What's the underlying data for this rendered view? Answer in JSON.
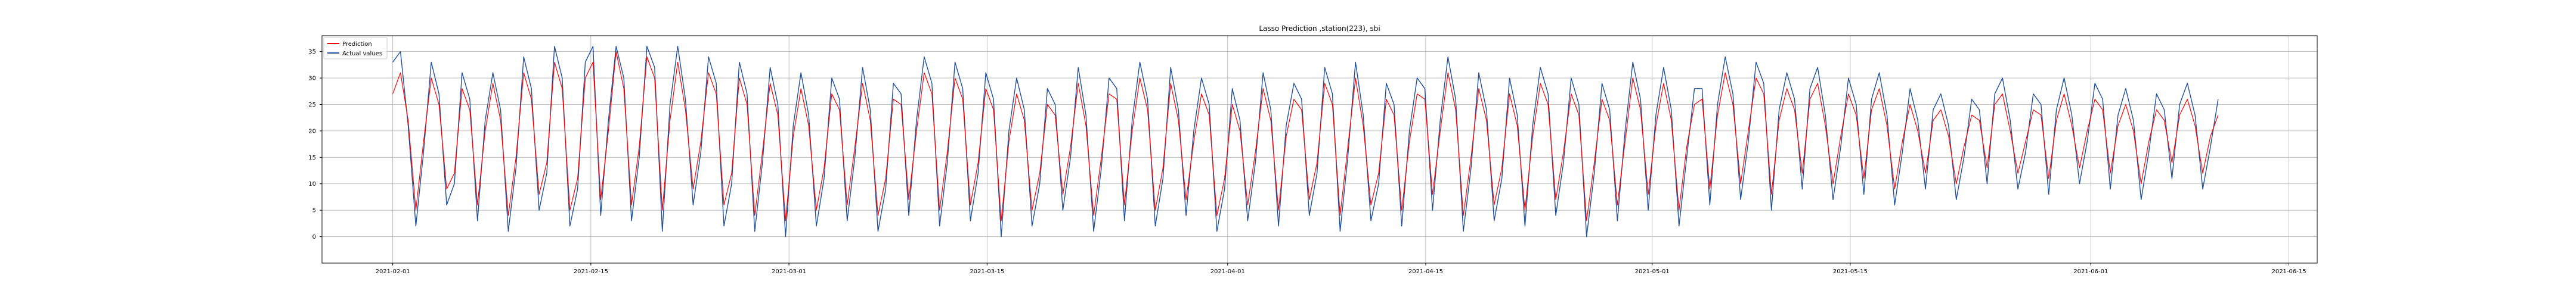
{
  "chart_data": {
    "type": "line",
    "title": "Lasso Prediction ,station(223), sbi",
    "xlabel": "",
    "ylabel": "",
    "x_range": [
      "2021-01-27",
      "2021-06-17"
    ],
    "x_series_range": [
      "2021-02-01",
      "2021-06-10"
    ],
    "x_tick_labels": [
      "2021-02-01",
      "2021-02-15",
      "2021-03-01",
      "2021-03-15",
      "2021-04-01",
      "2021-04-15",
      "2021-05-01",
      "2021-05-15",
      "2021-06-01",
      "2021-06-15"
    ],
    "ylim": [
      -5,
      38
    ],
    "y_ticks": [
      0,
      5,
      10,
      15,
      20,
      25,
      30,
      35
    ],
    "grid": true,
    "legend_position": "top-left",
    "series": [
      {
        "name": "Prediction",
        "color": "#ff0000",
        "values": [
          27,
          31,
          22,
          5,
          18,
          30,
          25,
          9,
          12,
          28,
          24,
          6,
          20,
          29,
          22,
          4,
          15,
          31,
          26,
          8,
          14,
          33,
          28,
          5,
          11,
          30,
          33,
          7,
          20,
          35,
          28,
          6,
          17,
          34,
          30,
          5,
          22,
          33,
          24,
          9,
          18,
          31,
          27,
          6,
          12,
          30,
          25,
          4,
          16,
          29,
          23,
          3,
          19,
          28,
          21,
          5,
          13,
          27,
          24,
          6,
          17,
          29,
          22,
          4,
          11,
          26,
          25,
          7,
          20,
          31,
          27,
          5,
          16,
          30,
          26,
          6,
          14,
          28,
          24,
          3,
          18,
          27,
          22,
          5,
          12,
          25,
          23,
          8,
          17,
          29,
          21,
          4,
          15,
          27,
          26,
          6,
          20,
          30,
          24,
          5,
          13,
          29,
          22,
          7,
          18,
          27,
          23,
          4,
          11,
          25,
          20,
          6,
          16,
          28,
          22,
          5,
          19,
          26,
          24,
          7,
          14,
          29,
          25,
          4,
          17,
          30,
          21,
          6,
          12,
          26,
          23,
          5,
          18,
          27,
          26,
          8,
          20,
          31,
          24,
          4,
          15,
          28,
          22,
          6,
          13,
          27,
          21,
          5,
          19,
          29,
          25,
          7,
          16,
          27,
          23,
          3,
          14,
          26,
          22,
          6,
          18,
          30,
          24,
          8,
          21,
          29,
          22,
          5,
          17,
          25,
          26,
          9,
          23,
          31,
          25,
          10,
          20,
          30,
          27,
          8,
          22,
          28,
          24,
          12,
          26,
          29,
          21,
          10,
          19,
          27,
          23,
          11,
          24,
          28,
          21,
          9,
          18,
          25,
          20,
          12,
          22,
          24,
          19,
          10,
          17,
          23,
          22,
          13,
          25,
          27,
          20,
          12,
          18,
          24,
          23,
          11,
          22,
          27,
          21,
          13,
          20,
          26,
          24,
          12,
          21,
          25,
          20,
          10,
          18,
          24,
          22,
          14,
          23,
          26,
          21,
          12,
          19,
          23
        ],
        "note_values": "approximate readings of the jagged series; sampled roughly every 12 hours from 2021-02-01 to 2021-06-10"
      },
      {
        "name": "Actual values",
        "color": "#1f4e9c",
        "values": [
          33,
          35,
          21,
          2,
          16,
          33,
          27,
          6,
          10,
          31,
          26,
          3,
          22,
          31,
          24,
          1,
          13,
          34,
          28,
          5,
          12,
          36,
          30,
          2,
          9,
          33,
          36,
          4,
          22,
          36,
          30,
          3,
          15,
          36,
          32,
          1,
          25,
          36,
          26,
          6,
          16,
          34,
          29,
          2,
          10,
          33,
          27,
          1,
          14,
          32,
          25,
          0,
          21,
          31,
          23,
          2,
          11,
          30,
          26,
          3,
          15,
          32,
          24,
          1,
          9,
          29,
          27,
          4,
          22,
          34,
          29,
          2,
          14,
          33,
          28,
          3,
          12,
          31,
          26,
          0,
          20,
          30,
          24,
          2,
          10,
          28,
          25,
          5,
          15,
          32,
          23,
          1,
          13,
          30,
          28,
          3,
          22,
          33,
          26,
          2,
          11,
          32,
          24,
          4,
          20,
          30,
          25,
          1,
          9,
          28,
          22,
          3,
          14,
          31,
          24,
          2,
          21,
          29,
          26,
          4,
          12,
          32,
          27,
          1,
          15,
          33,
          23,
          3,
          10,
          29,
          25,
          2,
          20,
          30,
          28,
          5,
          22,
          34,
          26,
          1,
          13,
          31,
          24,
          3,
          11,
          30,
          23,
          2,
          21,
          32,
          27,
          4,
          14,
          30,
          25,
          0,
          12,
          29,
          24,
          3,
          20,
          33,
          26,
          5,
          23,
          32,
          24,
          2,
          15,
          28,
          28,
          6,
          25,
          34,
          27,
          7,
          18,
          33,
          29,
          5,
          24,
          31,
          26,
          9,
          28,
          32,
          23,
          7,
          17,
          30,
          25,
          8,
          26,
          31,
          23,
          6,
          16,
          28,
          22,
          9,
          24,
          27,
          21,
          7,
          15,
          26,
          24,
          10,
          27,
          30,
          22,
          9,
          16,
          27,
          25,
          8,
          24,
          30,
          23,
          10,
          18,
          29,
          26,
          9,
          23,
          28,
          22,
          7,
          16,
          27,
          24,
          11,
          25,
          29,
          23,
          9,
          17,
          26
        ]
      }
    ]
  }
}
